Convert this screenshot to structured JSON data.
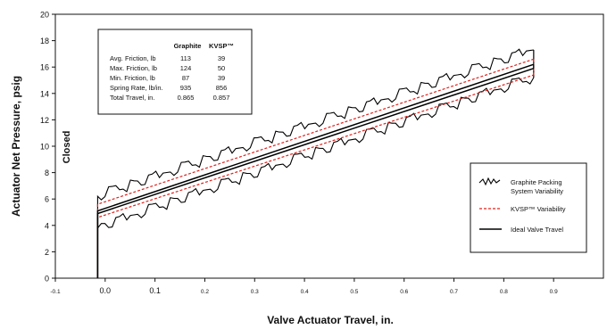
{
  "chart_data": {
    "type": "line",
    "title": "",
    "xlabel": "Valve Actuator Travel, in.",
    "ylabel": "Actuator Net Pressure, psig",
    "xlim": [
      -0.1,
      1.0
    ],
    "ylim": [
      0,
      20
    ],
    "x_ticks": [
      "-0.1",
      "0.0",
      "0.1",
      "0.2",
      "0.3",
      "0.4",
      "0.5",
      "0.6",
      "0.7",
      "0.8",
      "0.9"
    ],
    "y_ticks": [
      "0",
      "2",
      "4",
      "6",
      "8",
      "10",
      "12",
      "14",
      "16",
      "18",
      "20"
    ],
    "grid": false,
    "legend_position": "bottom-right",
    "annotations": [
      "Closed"
    ],
    "series": [
      {
        "name": "Graphite Packing System Variability",
        "style": "jagged",
        "color": "#000000",
        "upper": {
          "x": [
            -0.015,
            0.86
          ],
          "y": [
            6.2,
            17.3
          ]
        },
        "lower": {
          "x": [
            -0.015,
            0.86
          ],
          "y": [
            3.8,
            15.2
          ]
        }
      },
      {
        "name": "KVSP™ Variability",
        "style": "dashed",
        "color": "#e0201b",
        "upper": {
          "x": [
            -0.015,
            0.86
          ],
          "y": [
            5.6,
            16.6
          ]
        },
        "lower": {
          "x": [
            -0.015,
            0.86
          ],
          "y": [
            4.6,
            15.4
          ]
        }
      },
      {
        "name": "Ideal Valve Travel",
        "style": "solid",
        "color": "#000000",
        "upper": {
          "x": [
            -0.015,
            0.86
          ],
          "y": [
            5.1,
            16.2
          ]
        },
        "lower": {
          "x": [
            -0.015,
            0.86
          ],
          "y": [
            4.9,
            15.9
          ]
        }
      }
    ],
    "table": {
      "headers": [
        "",
        "Graphite",
        "KVSP™"
      ],
      "rows": [
        [
          "Avg. Friction, lb",
          "113",
          "39"
        ],
        [
          "Max. Friction, lb",
          "124",
          "50"
        ],
        [
          "Min. Friction, lb",
          "87",
          "39"
        ],
        [
          "Spring Rate, lb/in.",
          "935",
          "856"
        ],
        [
          "Total Travel, in.",
          "0.865",
          "0.857"
        ]
      ]
    },
    "legend": [
      {
        "label_lines": [
          "Graphite Packing",
          "System Variability"
        ],
        "style": "jagged"
      },
      {
        "label_lines": [
          "KVSP™ Variability"
        ],
        "style": "dashed"
      },
      {
        "label_lines": [
          "Ideal Valve Travel"
        ],
        "style": "solid"
      }
    ]
  },
  "colors": {
    "line": "#000000",
    "kvsp": "#e0201b"
  }
}
